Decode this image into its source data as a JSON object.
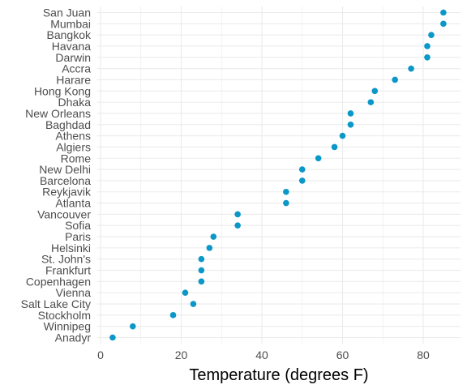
{
  "chart_data": {
    "type": "scatter",
    "title": "",
    "xlabel": "Temperature (degrees F)",
    "ylabel": "",
    "xlim": [
      0,
      89
    ],
    "x_ticks": [
      0,
      20,
      40,
      60,
      80
    ],
    "grid": true,
    "legend": "none",
    "point_color": "#0b98c8",
    "grid_color": "#ebebeb",
    "categories": [
      "Anadyr",
      "Winnipeg",
      "Stockholm",
      "Salt Lake City",
      "Vienna",
      "Copenhagen",
      "Frankfurt",
      "St. John's",
      "Helsinki",
      "Paris",
      "Sofia",
      "Vancouver",
      "Atlanta",
      "Reykjavik",
      "Barcelona",
      "New Delhi",
      "Rome",
      "Algiers",
      "Athens",
      "Baghdad",
      "New Orleans",
      "Dhaka",
      "Hong Kong",
      "Harare",
      "Accra",
      "Darwin",
      "Havana",
      "Bangkok",
      "Mumbai",
      "San Juan"
    ],
    "values": [
      3,
      8,
      18,
      23,
      21,
      25,
      25,
      25,
      27,
      28,
      34,
      34,
      46,
      46,
      50,
      50,
      54,
      58,
      60,
      62,
      62,
      67,
      68,
      73,
      77,
      81,
      81,
      82,
      85,
      85
    ]
  }
}
